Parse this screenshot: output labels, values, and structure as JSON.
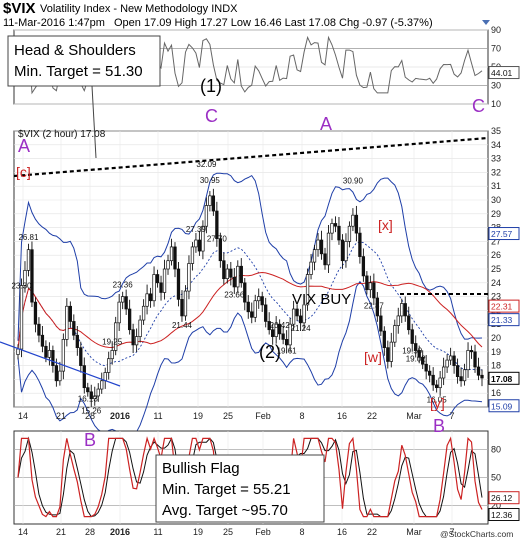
{
  "header": {
    "symbol": "$VIX",
    "name": "Volatility Index - New Methodology  INDX",
    "datetime": "11-Mar-2016 1:47pm",
    "ohlc": "Open 17.09  High 17.27  Low 16.46  Last 17.08  Chg -0.97 (-5.37%)",
    "credit": "@StockCharts.com"
  },
  "price_label": "$VIX (2 hour) 17.08",
  "annotations": {
    "hs_line1": "Head & Shoulders",
    "hs_line2": "Min. Target = 51.30",
    "bf_line1": "Bullish Flag",
    "bf_line2": "Min. Target = 55.21",
    "bf_line3": "Avg. Target ~95.70",
    "vix_buy": "VIX BUY",
    "w_A_left": "A",
    "w_c_left": "[c]",
    "w_C": "C",
    "w_A": "A",
    "w_x": "[x]",
    "w_w": "[w]",
    "w_y": "[y]",
    "w_B": "B",
    "w_B_mid": "B",
    "w_B_bot": "B",
    "w_C_top": "C",
    "w_1": "(1)",
    "w_2": "(2)"
  },
  "chart_data": [
    {
      "type": "line",
      "panel": "top indicator",
      "ylim": [
        10,
        90
      ],
      "yticks": [
        10,
        30,
        50,
        70,
        90
      ],
      "last_value_tag": "44.01",
      "last_value": 44.01
    },
    {
      "type": "candlestick",
      "panel": "price",
      "title": "$VIX (2 hour) 17.08",
      "ylim": [
        15,
        35
      ],
      "yticks": [
        15,
        16,
        17,
        18,
        19,
        20,
        21,
        22,
        23,
        24,
        25,
        26,
        27,
        28,
        29,
        30,
        31,
        32,
        33,
        34,
        35
      ],
      "x_tick_labels": [
        "14",
        "21",
        "28",
        "2016",
        "11",
        "19",
        "25",
        "Feb",
        "8",
        "16",
        "22",
        "Mar",
        "7"
      ],
      "last_price": 17.08,
      "side_tags": [
        {
          "label": "27.57",
          "value": 27.57,
          "color": "#1f3fa8"
        },
        {
          "label": "22.31",
          "value": 22.31,
          "color": "#cc2222"
        },
        {
          "label": "21.33",
          "value": 21.33,
          "color": "#1f3fa8"
        },
        {
          "label": "17.08",
          "value": 17.08,
          "color": "#000000"
        },
        {
          "label": "15.09",
          "value": 15.09,
          "color": "#1f3fa8"
        }
      ],
      "data_labels": [
        {
          "text": "26.81",
          "value": 26.81
        },
        {
          "text": "23.30",
          "value": 23.3
        },
        {
          "text": "16.13",
          "value": 16.13
        },
        {
          "text": "15.26",
          "value": 15.26
        },
        {
          "text": "23.36",
          "value": 23.36
        },
        {
          "text": "19.25",
          "value": 19.25
        },
        {
          "text": "27.39",
          "value": 27.39
        },
        {
          "text": "21.44",
          "value": 21.44
        },
        {
          "text": "30.95",
          "value": 30.95
        },
        {
          "text": "32.09",
          "value": 32.09
        },
        {
          "text": "27.70",
          "value": 27.7
        },
        {
          "text": "23.66",
          "value": 23.66
        },
        {
          "text": "20.42",
          "value": 20.42
        },
        {
          "text": "19.61",
          "value": 19.61
        },
        {
          "text": "21.24",
          "value": 21.24
        },
        {
          "text": "30.90",
          "value": 30.9
        },
        {
          "text": "22.87",
          "value": 22.87
        },
        {
          "text": "19.02",
          "value": 19.02
        },
        {
          "text": "16.05",
          "value": 16.05
        },
        {
          "text": "19.59",
          "value": 19.59
        }
      ],
      "close_series": [
        19.2,
        23.8,
        24.9,
        26.4,
        22.6,
        21.0,
        20.2,
        19.4,
        18.6,
        19.1,
        18.0,
        16.9,
        17.6,
        19.9,
        22.3,
        21.2,
        20.2,
        19.3,
        18.0,
        16.4,
        16.1,
        15.6,
        15.8,
        16.3,
        16.9,
        17.5,
        18.5,
        19.1,
        21.1,
        22.6,
        23.0,
        22.1,
        20.6,
        19.5,
        20.1,
        21.3,
        22.3,
        23.2,
        22.7,
        24.6,
        24.0,
        23.3,
        25.0,
        25.6,
        26.6,
        25.0,
        22.8,
        21.6,
        23.4,
        25.4,
        26.6,
        27.1,
        26.3,
        28.1,
        29.6,
        30.3,
        29.2,
        27.2,
        25.6,
        24.3,
        25.0,
        24.4,
        23.7,
        25.2,
        24.0,
        22.6,
        21.9,
        21.5,
        22.7,
        23.0,
        22.4,
        21.2,
        20.6,
        20.1,
        21.0,
        20.3,
        19.9,
        19.5,
        21.0,
        22.1,
        21.6,
        21.1,
        22.4,
        24.6,
        25.5,
        26.4,
        27.1,
        26.1,
        25.3,
        27.6,
        28.3,
        28.1,
        27.1,
        25.6,
        27.0,
        28.1,
        28.9,
        27.6,
        25.9,
        24.5,
        23.5,
        24.0,
        22.9,
        21.6,
        20.5,
        19.3,
        18.3,
        19.7,
        20.9,
        21.6,
        22.5,
        21.6,
        20.6,
        19.6,
        19.1,
        18.6,
        18.1,
        17.6,
        17.3,
        16.6,
        16.4,
        17.1,
        17.9,
        18.4,
        18.7,
        18.0,
        17.2,
        16.9,
        17.7,
        19.1,
        19.0,
        17.9,
        17.3,
        17.1
      ]
    },
    {
      "type": "line",
      "panel": "bottom indicator",
      "ylim": [
        0,
        100
      ],
      "yticks": [
        20,
        50,
        80
      ],
      "last_value_tags": [
        "26.12",
        "12.36"
      ],
      "last_values": [
        26.12,
        12.36
      ],
      "x_tick_labels": [
        "14",
        "21",
        "28",
        "2016",
        "11",
        "19",
        "25",
        "Feb",
        "8",
        "16",
        "22",
        "Mar",
        "7"
      ]
    }
  ]
}
